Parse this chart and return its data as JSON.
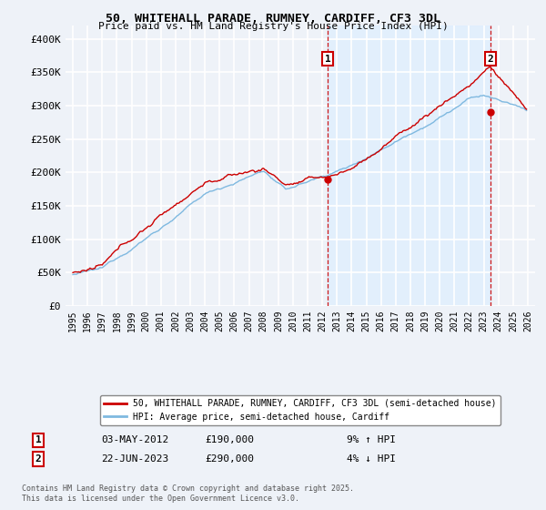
{
  "title1": "50, WHITEHALL PARADE, RUMNEY, CARDIFF, CF3 3DL",
  "title2": "Price paid vs. HM Land Registry's House Price Index (HPI)",
  "ylabel_ticks": [
    "£0",
    "£50K",
    "£100K",
    "£150K",
    "£200K",
    "£250K",
    "£300K",
    "£350K",
    "£400K"
  ],
  "ytick_values": [
    0,
    50000,
    100000,
    150000,
    200000,
    250000,
    300000,
    350000,
    400000
  ],
  "ylim": [
    0,
    420000
  ],
  "xlim_start": 1994.5,
  "xlim_end": 2026.5,
  "hpi_color": "#7fb9e0",
  "price_color": "#cc0000",
  "vline_color": "#cc0000",
  "marker1_x": 2012.37,
  "marker1_y": 190000,
  "marker2_x": 2023.47,
  "marker2_y": 290000,
  "vline1_x": 2012.37,
  "vline2_x": 2023.47,
  "shade_color": "#ddeeff",
  "legend_line1": "50, WHITEHALL PARADE, RUMNEY, CARDIFF, CF3 3DL (semi-detached house)",
  "legend_line2": "HPI: Average price, semi-detached house, Cardiff",
  "annotation1_box": "1",
  "annotation1_date": "03-MAY-2012",
  "annotation1_price": "£190,000",
  "annotation1_hpi": "9% ↑ HPI",
  "annotation2_box": "2",
  "annotation2_date": "22-JUN-2023",
  "annotation2_price": "£290,000",
  "annotation2_hpi": "4% ↓ HPI",
  "footer": "Contains HM Land Registry data © Crown copyright and database right 2025.\nThis data is licensed under the Open Government Licence v3.0.",
  "background_color": "#eef2f8",
  "plot_bg_color": "#eef2f8",
  "grid_color": "#ffffff",
  "shade_alpha": 0.5
}
